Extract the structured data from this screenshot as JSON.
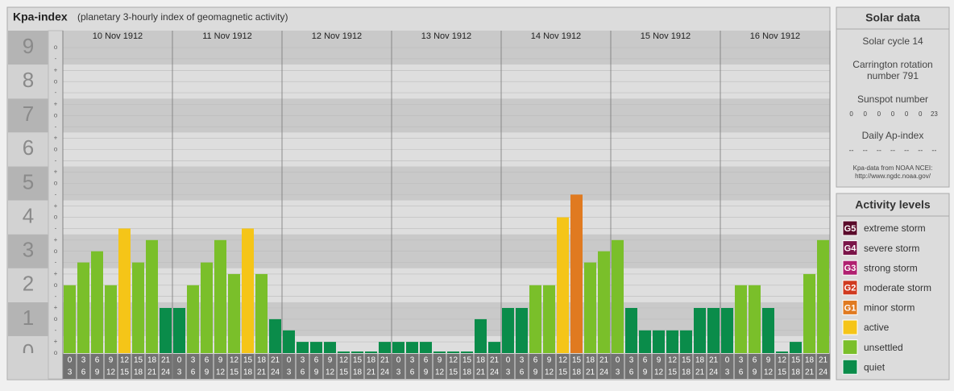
{
  "chart_data": {
    "type": "bar",
    "title": "Kpa-index",
    "subtitle": "(planetary 3-hourly index of geomagnetic activity)",
    "days": [
      "10 Nov 1912",
      "11 Nov 1912",
      "12 Nov 1912",
      "13 Nov 1912",
      "14 Nov 1912",
      "15 Nov 1912",
      "16 Nov 1912"
    ],
    "hours": [
      [
        0,
        3
      ],
      [
        3,
        6
      ],
      [
        6,
        9
      ],
      [
        9,
        12
      ],
      [
        12,
        15
      ],
      [
        15,
        18
      ],
      [
        18,
        21
      ],
      [
        21,
        24
      ]
    ],
    "values": [
      2,
      2.67,
      3,
      2,
      3.67,
      2.67,
      3.33,
      1.33,
      1.33,
      2,
      2.67,
      3.33,
      2.33,
      3.67,
      2.33,
      1,
      0.67,
      0.33,
      0.33,
      0.33,
      0,
      0,
      0,
      0.33,
      0.33,
      0.33,
      0.33,
      0,
      0,
      0,
      1,
      0.33,
      1.33,
      1.33,
      2,
      2,
      4,
      4.67,
      2.67,
      3,
      3.33,
      1.33,
      0.67,
      0.67,
      0.67,
      0.67,
      1.33,
      1.33,
      1.33,
      2,
      2,
      1.33,
      0,
      0.33,
      2.33,
      3.33
    ],
    "colors": [
      "#7abf2a",
      "#7abf2a",
      "#7abf2a",
      "#7abf2a",
      "#f5c518",
      "#7abf2a",
      "#7abf2a",
      "#0a8c4a",
      "#0a8c4a",
      "#7abf2a",
      "#7abf2a",
      "#7abf2a",
      "#7abf2a",
      "#f5c518",
      "#7abf2a",
      "#0a8c4a",
      "#0a8c4a",
      "#0a8c4a",
      "#0a8c4a",
      "#0a8c4a",
      "#0a8c4a",
      "#0a8c4a",
      "#0a8c4a",
      "#0a8c4a",
      "#0a8c4a",
      "#0a8c4a",
      "#0a8c4a",
      "#0a8c4a",
      "#0a8c4a",
      "#0a8c4a",
      "#0a8c4a",
      "#0a8c4a",
      "#0a8c4a",
      "#0a8c4a",
      "#7abf2a",
      "#7abf2a",
      "#f5c518",
      "#e07a20",
      "#7abf2a",
      "#7abf2a",
      "#7abf2a",
      "#0a8c4a",
      "#0a8c4a",
      "#0a8c4a",
      "#0a8c4a",
      "#0a8c4a",
      "#0a8c4a",
      "#0a8c4a",
      "#0a8c4a",
      "#7abf2a",
      "#7abf2a",
      "#0a8c4a",
      "#0a8c4a",
      "#0a8c4a",
      "#7abf2a",
      "#7abf2a"
    ],
    "ylim": [
      0,
      9.5
    ],
    "ylabels": [
      0,
      1,
      2,
      3,
      4,
      5,
      6,
      7,
      8,
      9
    ],
    "yticks": [
      {
        "value": 0,
        "label": "o"
      },
      {
        "value": 0.33,
        "label": "+"
      },
      {
        "value": 0.67,
        "label": "-"
      },
      {
        "value": 1,
        "label": "o"
      },
      {
        "value": 1.33,
        "label": "+"
      },
      {
        "value": 1.67,
        "label": "-"
      },
      {
        "value": 2,
        "label": "o"
      },
      {
        "value": 2.33,
        "label": "+"
      },
      {
        "value": 2.67,
        "label": "-"
      },
      {
        "value": 3,
        "label": "o"
      },
      {
        "value": 3.33,
        "label": "+"
      },
      {
        "value": 3.67,
        "label": "-"
      },
      {
        "value": 4,
        "label": "o"
      },
      {
        "value": 4.33,
        "label": "+"
      },
      {
        "value": 4.67,
        "label": "-"
      },
      {
        "value": 5,
        "label": "o"
      },
      {
        "value": 5.33,
        "label": "+"
      },
      {
        "value": 5.67,
        "label": "-"
      },
      {
        "value": 6,
        "label": "o"
      },
      {
        "value": 6.33,
        "label": "+"
      },
      {
        "value": 6.67,
        "label": "-"
      },
      {
        "value": 7,
        "label": "o"
      },
      {
        "value": 7.33,
        "label": "+"
      },
      {
        "value": 7.67,
        "label": "-"
      },
      {
        "value": 8,
        "label": "o"
      },
      {
        "value": 8.33,
        "label": "+"
      },
      {
        "value": 8.67,
        "label": "-"
      },
      {
        "value": 9,
        "label": "o"
      }
    ],
    "solar": {
      "title": "Solar data",
      "cycle": "Solar cycle 14",
      "rotation": [
        "Carrington rotation",
        "number 791"
      ],
      "sunspot_title": "Sunspot number",
      "sunspot": [
        0,
        0,
        0,
        0,
        0,
        0,
        23
      ],
      "ap_title": "Daily Ap-index",
      "ap": [
        "--",
        "--",
        "--",
        "--",
        "--",
        "--",
        "--"
      ],
      "source": [
        "Kpa-data from NOAA NCEI:",
        "http://www.ngdc.noaa.gov/"
      ]
    },
    "legend": {
      "title": "Activity levels",
      "items": [
        {
          "code": "G5",
          "label": "extreme storm",
          "color": "#5a0a2a"
        },
        {
          "code": "G4",
          "label": "severe storm",
          "color": "#7a1448"
        },
        {
          "code": "G3",
          "label": "strong storm",
          "color": "#b02070"
        },
        {
          "code": "G2",
          "label": "moderate storm",
          "color": "#d03a20"
        },
        {
          "code": "G1",
          "label": "minor storm",
          "color": "#e07a20"
        },
        {
          "label": "active",
          "color": "#f5c518"
        },
        {
          "label": "unsettled",
          "color": "#7abf2a"
        },
        {
          "label": "quiet",
          "color": "#0a8c4a"
        }
      ]
    }
  }
}
